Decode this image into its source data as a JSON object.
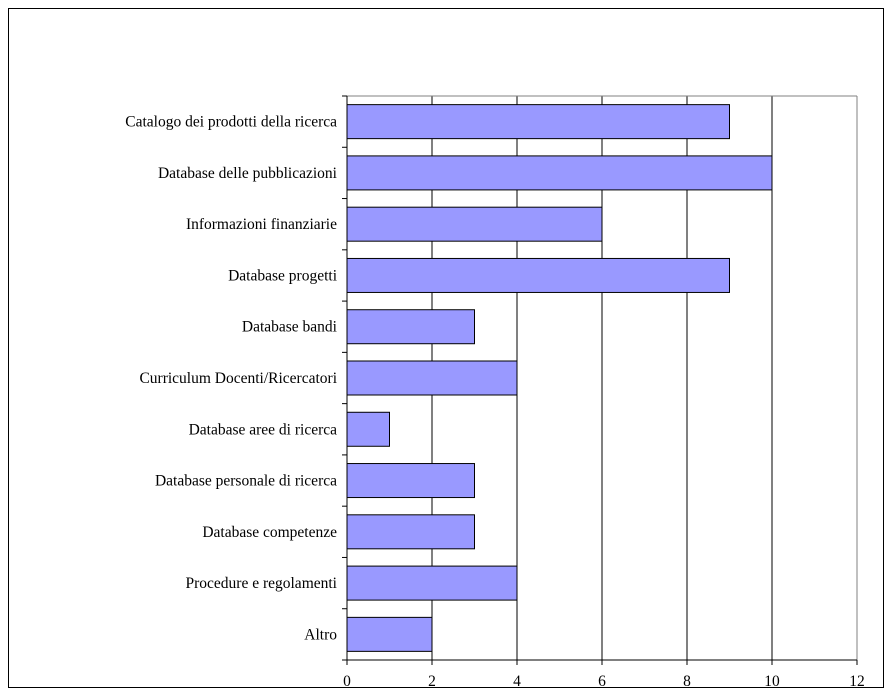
{
  "chart_data": {
    "type": "bar",
    "orientation": "horizontal",
    "categories": [
      "Catalogo dei prodotti della ricerca",
      "Database delle pubblicazioni",
      "Informazioni finanziarie",
      "Database progetti",
      "Database bandi",
      "Curriculum Docenti/Ricercatori",
      "Database aree di ricerca",
      "Database personale di ricerca",
      "Database competenze",
      "Procedure e regolamenti",
      "Altro"
    ],
    "values": [
      9,
      10,
      6,
      9,
      3,
      4,
      1,
      3,
      3,
      4,
      2
    ],
    "xlim": [
      0,
      12
    ],
    "xticks": [
      "0",
      "2",
      "4",
      "6",
      "8",
      "10",
      "12"
    ],
    "grid": "vertical",
    "legend": "none",
    "colors": {
      "bar_fill": "#9999ff",
      "bar_stroke": "#000000",
      "grid": "#000000",
      "plot_border": "#808080"
    }
  }
}
